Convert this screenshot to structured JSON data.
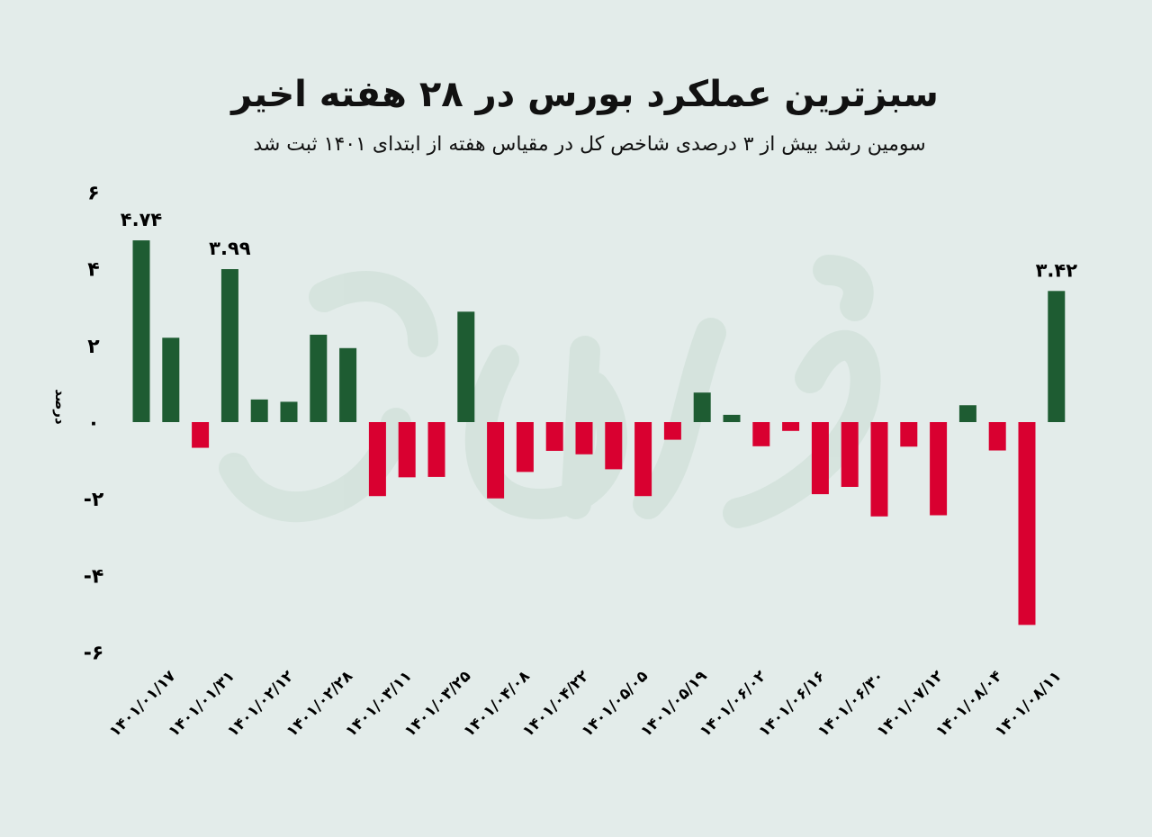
{
  "header": {
    "title": "سبزترین عملکرد بورس در ۲۸ هفته اخیر",
    "subtitle": "سومین رشد بیش از ۳ درصدی شاخص کل در مقیاس هفته از ابتدای ۱۴۰۱ ثبت شد"
  },
  "watermark": "فردای اقتصاد",
  "colors": {
    "background": "#e3ecea",
    "positive": "#1e5c32",
    "negative": "#d90030"
  },
  "chart_data": {
    "type": "bar",
    "title": "سبزترین عملکرد بورس در ۲۸ هفته اخیر",
    "subtitle": "سومین رشد بیش از ۳ درصدی شاخص کل در مقیاس هفته از ابتدای ۱۴۰۱ ثبت شد",
    "ylabel": "درصد",
    "xlabel": "",
    "ylim": [
      -6,
      6
    ],
    "y_ticks": [
      6,
      4,
      2,
      0,
      -2,
      -4,
      -6
    ],
    "y_tick_labels": [
      "۶",
      "۴",
      "۲",
      "۰",
      "-۲",
      "-۴",
      "-۶"
    ],
    "grid": false,
    "values": [
      4.74,
      2.2,
      -0.67,
      3.99,
      0.59,
      0.53,
      2.28,
      1.93,
      -1.93,
      -1.44,
      -1.43,
      2.88,
      -1.99,
      -1.3,
      -0.75,
      -0.84,
      -1.23,
      -1.93,
      -0.46,
      0.77,
      0.19,
      -0.63,
      -0.23,
      -1.88,
      -1.69,
      -2.46,
      -0.64,
      -2.43,
      0.44,
      -0.74,
      -5.29,
      3.42
    ],
    "x_tick_labels": [
      "۱۴۰۱/۰۱/۱۷",
      "۱۴۰۱/۰۱/۳۱",
      "۱۴۰۱/۰۲/۱۲",
      "۱۴۰۱/۰۲/۲۸",
      "۱۴۰۱/۰۳/۱۱",
      "۱۴۰۱/۰۳/۲۵",
      "۱۴۰۱/۰۴/۰۸",
      "۱۴۰۱/۰۴/۲۲",
      "۱۴۰۱/۰۵/۰۵",
      "۱۴۰۱/۰۵/۱۹",
      "۱۴۰۱/۰۶/۰۲",
      "۱۴۰۱/۰۶/۱۶",
      "۱۴۰۱/۰۶/۳۰",
      "۱۴۰۱/۰۷/۱۲",
      "۱۴۰۱/۰۸/۰۴",
      "۱۴۰۱/۰۸/۱۱"
    ],
    "data_labels": [
      {
        "bar": 0,
        "text": "۴.۷۴"
      },
      {
        "bar": 3,
        "text": "۳.۹۹"
      },
      {
        "bar": 31,
        "text": "۳.۴۲"
      }
    ]
  }
}
